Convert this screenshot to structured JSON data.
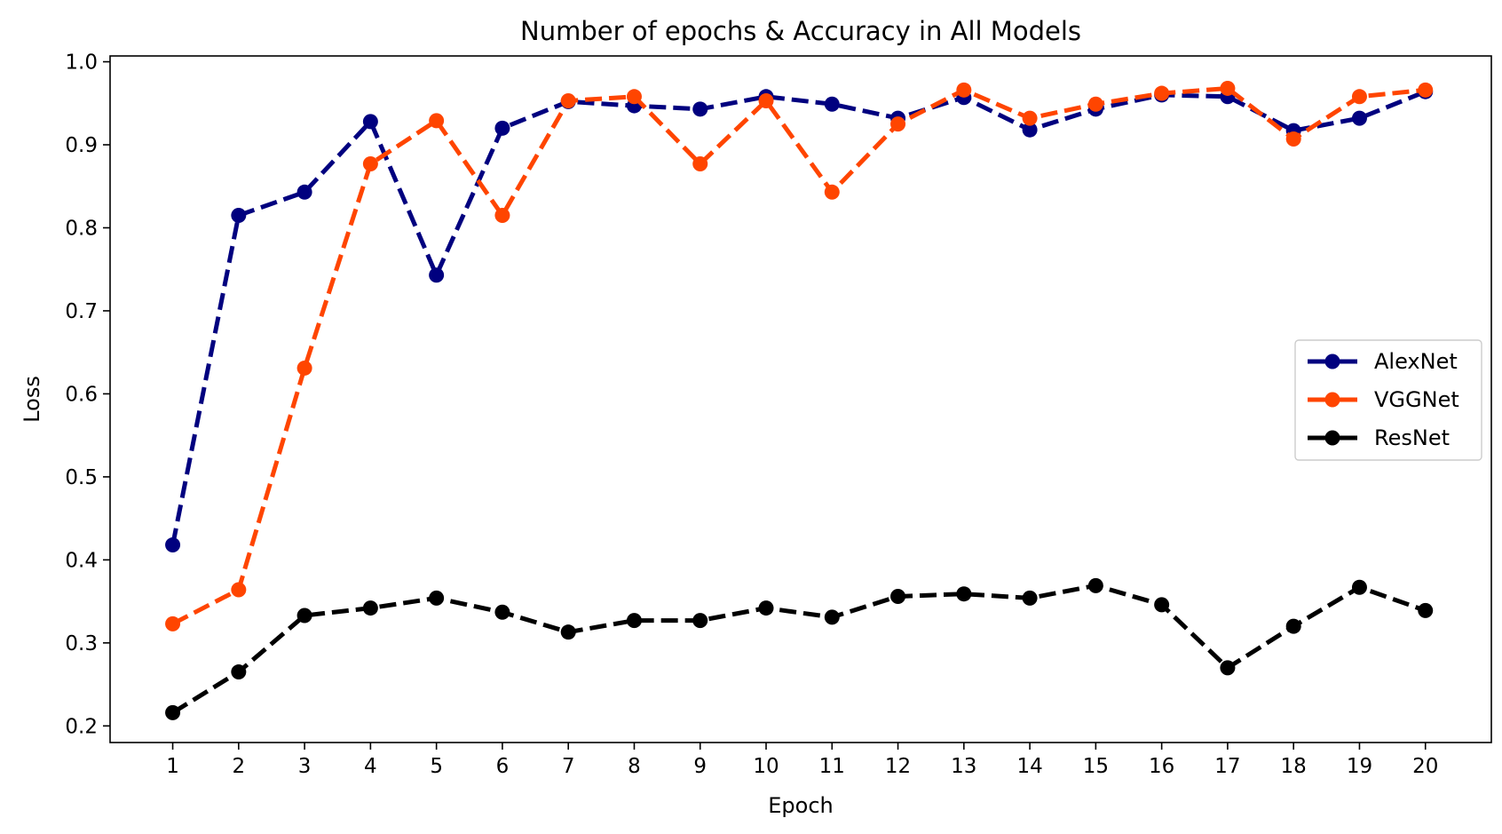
{
  "chart_data": {
    "type": "line",
    "title": "Number of epochs & Accuracy in All Models",
    "xlabel": "Epoch",
    "ylabel": "Loss",
    "x": [
      1,
      2,
      3,
      4,
      5,
      6,
      7,
      8,
      9,
      10,
      11,
      12,
      13,
      14,
      15,
      16,
      17,
      18,
      19,
      20
    ],
    "xticks": [
      "1",
      "2",
      "3",
      "4",
      "5",
      "6",
      "7",
      "8",
      "9",
      "10",
      "11",
      "12",
      "13",
      "14",
      "15",
      "16",
      "17",
      "18",
      "19",
      "20"
    ],
    "yticks": [
      "0.2",
      "0.3",
      "0.4",
      "0.5",
      "0.6",
      "0.7",
      "0.8",
      "0.9",
      "1.0"
    ],
    "xlim": [
      0.05,
      21.0
    ],
    "ylim": [
      0.18,
      1.007
    ],
    "grid": false,
    "legend_position": "center-right",
    "series": [
      {
        "name": "AlexNet",
        "color": "#00007f",
        "values": [
          0.418,
          0.815,
          0.843,
          0.928,
          0.743,
          0.92,
          0.952,
          0.947,
          0.943,
          0.958,
          0.949,
          0.932,
          0.957,
          0.918,
          0.943,
          0.96,
          0.958,
          0.917,
          0.932,
          0.964
        ]
      },
      {
        "name": "VGGNet",
        "color": "#ff4500",
        "values": [
          0.323,
          0.364,
          0.631,
          0.877,
          0.929,
          0.815,
          0.953,
          0.958,
          0.877,
          0.953,
          0.843,
          0.925,
          0.966,
          0.932,
          0.949,
          0.962,
          0.968,
          0.907,
          0.958,
          0.966
        ]
      },
      {
        "name": "ResNet",
        "color": "#000000",
        "values": [
          0.216,
          0.265,
          0.333,
          0.342,
          0.354,
          0.337,
          0.313,
          0.327,
          0.327,
          0.342,
          0.331,
          0.356,
          0.359,
          0.354,
          0.369,
          0.346,
          0.27,
          0.32,
          0.367,
          0.339
        ]
      }
    ]
  }
}
